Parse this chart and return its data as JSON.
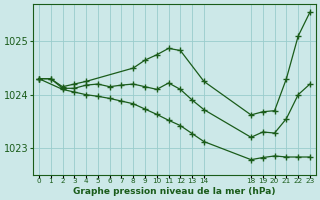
{
  "title": "Graphe pression niveau de la mer (hPa)",
  "background_color": "#cce8e8",
  "grid_color": "#99cccc",
  "line_color": "#1a5c1a",
  "ylim": [
    1022.5,
    1025.7
  ],
  "yticks": [
    1023,
    1024,
    1025
  ],
  "xlim": [
    -0.5,
    23.5
  ],
  "xtick_positions": [
    0,
    1,
    2,
    3,
    4,
    5,
    6,
    7,
    8,
    9,
    10,
    11,
    12,
    13,
    14,
    18,
    19,
    20,
    21,
    22,
    23
  ],
  "xtick_labels": [
    "0",
    "1",
    "2",
    "3",
    "4",
    "5",
    "6",
    "7",
    "8",
    "9",
    "10",
    "11",
    "12",
    "13",
    "14",
    "18",
    "19",
    "20",
    "21",
    "22",
    "23"
  ],
  "series_high_x": [
    0,
    1,
    2,
    3,
    4,
    8,
    9,
    10,
    11,
    12,
    14,
    18,
    19,
    20,
    21,
    22,
    23
  ],
  "series_high_y": [
    1024.3,
    1024.3,
    1024.15,
    1024.2,
    1024.25,
    1024.5,
    1024.65,
    1024.75,
    1024.87,
    1024.83,
    1024.25,
    1023.62,
    1023.68,
    1023.7,
    1024.3,
    1025.1,
    1025.55
  ],
  "series_low_x": [
    0,
    2,
    3,
    4,
    5,
    6,
    7,
    8,
    9,
    10,
    11,
    12,
    13,
    14,
    18,
    19,
    20,
    21,
    22,
    23
  ],
  "series_low_y": [
    1024.3,
    1024.1,
    1024.05,
    1024.0,
    1023.97,
    1023.93,
    1023.88,
    1023.83,
    1023.73,
    1023.63,
    1023.52,
    1023.42,
    1023.27,
    1023.12,
    1022.78,
    1022.82,
    1022.85,
    1022.83,
    1022.83,
    1022.83
  ],
  "series_mid_x": [
    0,
    1,
    2,
    3,
    4,
    5,
    6,
    7,
    8,
    9,
    10,
    11,
    12,
    13,
    14,
    18,
    19,
    20,
    21,
    22,
    23
  ],
  "series_mid_y": [
    1024.3,
    1024.3,
    1024.12,
    1024.12,
    1024.18,
    1024.2,
    1024.15,
    1024.18,
    1024.2,
    1024.15,
    1024.1,
    1024.22,
    1024.1,
    1023.9,
    1023.72,
    1023.2,
    1023.3,
    1023.28,
    1023.55,
    1024.0,
    1024.2
  ]
}
